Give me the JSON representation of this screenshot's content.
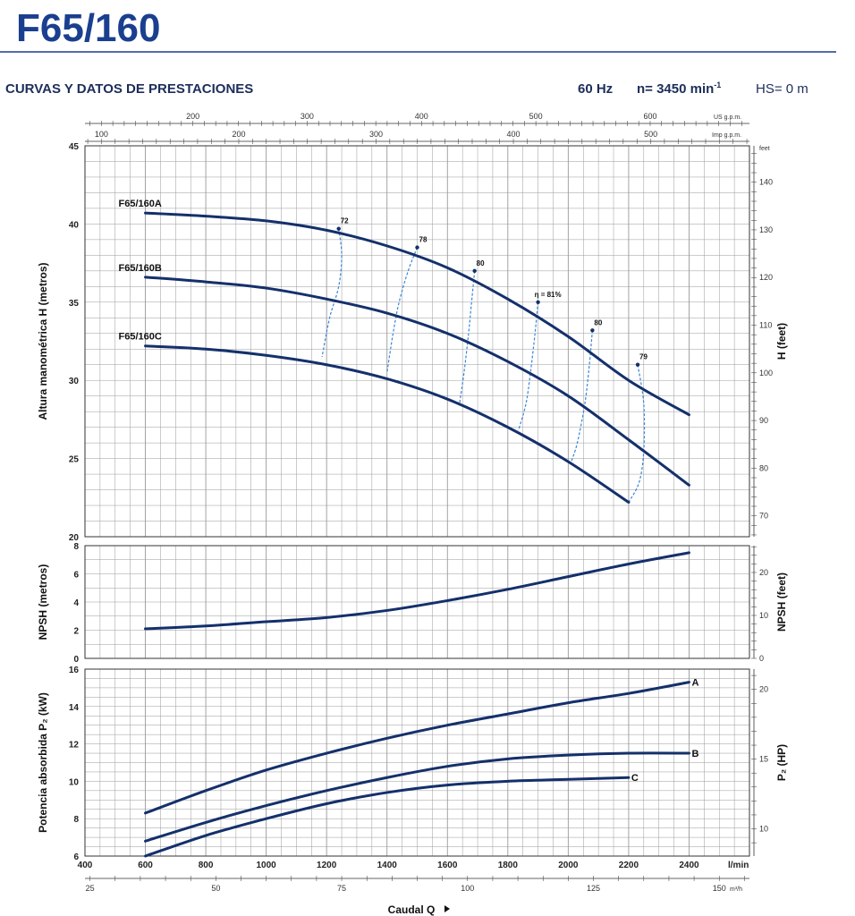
{
  "header": {
    "title": "F65/160",
    "subtitle": "CURVAS Y DATOS DE PRESTACIONES",
    "freq": "60 Hz",
    "speed": "n= 3450 min",
    "speed_exp": "-1",
    "hs": "HS= 0 m"
  },
  "chart_data": [
    {
      "type": "line",
      "name": "head",
      "ylabel": "Altura manométrica H (metros)",
      "ylabel_right": "H (feet)",
      "ylim": [
        20,
        45
      ],
      "yticks": [
        20,
        25,
        30,
        35,
        40,
        45
      ],
      "ylim_right": [
        65.6,
        147.6
      ],
      "yticks_right": [
        70,
        80,
        90,
        100,
        110,
        120,
        130,
        140
      ],
      "ylabel_right_unit": "feet",
      "xlim": [
        400,
        2600
      ],
      "grid": true,
      "series": [
        {
          "name": "F65/160A",
          "x": [
            600,
            800,
            1000,
            1200,
            1400,
            1600,
            1800,
            2000,
            2200,
            2400
          ],
          "y": [
            40.7,
            40.5,
            40.2,
            39.6,
            38.6,
            37.2,
            35.2,
            32.8,
            30.0,
            27.8
          ]
        },
        {
          "name": "F65/160B",
          "x": [
            600,
            800,
            1000,
            1200,
            1400,
            1600,
            1800,
            2000,
            2200,
            2400
          ],
          "y": [
            36.6,
            36.3,
            35.9,
            35.2,
            34.3,
            33.0,
            31.2,
            29.0,
            26.2,
            23.3
          ]
        },
        {
          "name": "F65/160C",
          "x": [
            600,
            800,
            1000,
            1200,
            1400,
            1600,
            1800,
            2000,
            2200
          ],
          "y": [
            32.2,
            32.0,
            31.6,
            31.0,
            30.1,
            28.8,
            27.0,
            24.8,
            22.2
          ]
        }
      ],
      "efficiency_labels": [
        "72",
        "78",
        "80",
        "η = 81%",
        "80",
        "79"
      ],
      "efficiency_lines": [
        {
          "label": "72",
          "points": [
            [
              1240,
              39.7
            ],
            [
              1250,
              38.0
            ],
            [
              1240,
              36.0
            ],
            [
              1210,
              34.0
            ],
            [
              1185,
              31.5
            ]
          ]
        },
        {
          "label": "78",
          "points": [
            [
              1500,
              38.5
            ],
            [
              1470,
              37.0
            ],
            [
              1440,
              35.0
            ],
            [
              1420,
              33.0
            ],
            [
              1400,
              30.5
            ]
          ]
        },
        {
          "label": "80",
          "points": [
            [
              1690,
              37.0
            ],
            [
              1680,
              35.0
            ],
            [
              1670,
              33.0
            ],
            [
              1655,
              30.5
            ],
            [
              1640,
              28.5
            ]
          ]
        },
        {
          "label": "η = 81%",
          "points": [
            [
              1900,
              35.0
            ],
            [
              1890,
              33.0
            ],
            [
              1875,
              30.5
            ],
            [
              1860,
              28.5
            ],
            [
              1835,
              26.8
            ]
          ]
        },
        {
          "label": "80",
          "points": [
            [
              2080,
              33.2
            ],
            [
              2070,
              31.0
            ],
            [
              2055,
              28.5
            ],
            [
              2030,
              26.0
            ],
            [
              2010,
              24.8
            ]
          ]
        },
        {
          "label": "79",
          "points": [
            [
              2230,
              31.0
            ],
            [
              2250,
              28.5
            ],
            [
              2250,
              25.5
            ],
            [
              2235,
              23.5
            ],
            [
              2200,
              22.2
            ]
          ]
        }
      ]
    },
    {
      "type": "line",
      "name": "npsh",
      "ylabel": "NPSH (metros)",
      "ylabel_right": "NPSH (feet)",
      "ylim": [
        0,
        8
      ],
      "yticks": [
        0,
        2,
        4,
        6,
        8
      ],
      "yticks_right": [
        0,
        10,
        20
      ],
      "xlim": [
        400,
        2600
      ],
      "grid": true,
      "series": [
        {
          "name": "NPSH",
          "x": [
            600,
            800,
            1000,
            1200,
            1400,
            1600,
            1800,
            2000,
            2200,
            2400
          ],
          "y": [
            2.1,
            2.3,
            2.6,
            2.9,
            3.4,
            4.1,
            4.9,
            5.8,
            6.7,
            7.5
          ]
        }
      ]
    },
    {
      "type": "line",
      "name": "power",
      "ylabel": "Potencia absorbida P₂ (kW)",
      "ylabel_right": "P₂ (HP)",
      "ylim": [
        6,
        16
      ],
      "yticks": [
        6,
        8,
        10,
        12,
        14,
        16
      ],
      "yticks_right": [
        10,
        15,
        20
      ],
      "xlim": [
        400,
        2600
      ],
      "xticks": [
        400,
        600,
        800,
        1000,
        1200,
        1400,
        1600,
        1800,
        2000,
        2200,
        2400
      ],
      "xlabel_unit": "l/min",
      "xlabel": "Caudal Q",
      "x_m3h_ticks": [
        25,
        50,
        75,
        100,
        125,
        150
      ],
      "x_m3h_unit": "m³/h",
      "x_us_gpm_ticks": [
        200,
        300,
        400,
        500,
        600
      ],
      "x_us_gpm_unit": "US g.p.m.",
      "x_imp_gpm_ticks": [
        100,
        200,
        300,
        400,
        500
      ],
      "x_imp_gpm_unit": "Imp g.p.m.",
      "grid": true,
      "series": [
        {
          "name": "A",
          "x": [
            600,
            800,
            1000,
            1200,
            1400,
            1600,
            1800,
            2000,
            2200,
            2400
          ],
          "y": [
            8.3,
            9.5,
            10.6,
            11.5,
            12.3,
            13.0,
            13.6,
            14.2,
            14.7,
            15.3
          ]
        },
        {
          "name": "B",
          "x": [
            600,
            800,
            1000,
            1200,
            1400,
            1600,
            1800,
            2000,
            2200,
            2400
          ],
          "y": [
            6.8,
            7.8,
            8.7,
            9.5,
            10.2,
            10.8,
            11.2,
            11.4,
            11.5,
            11.5
          ]
        },
        {
          "name": "C",
          "x": [
            600,
            800,
            1000,
            1200,
            1400,
            1600,
            1800,
            2000,
            2200
          ],
          "y": [
            6.0,
            7.1,
            8.0,
            8.8,
            9.4,
            9.8,
            10.0,
            10.1,
            10.2
          ]
        }
      ]
    }
  ],
  "colors": {
    "curve": "#14306b",
    "efficiency": "#3a86d6",
    "grid": "#9a9a9a",
    "title": "#1b3f8f",
    "rule": "#1b3f8f"
  }
}
